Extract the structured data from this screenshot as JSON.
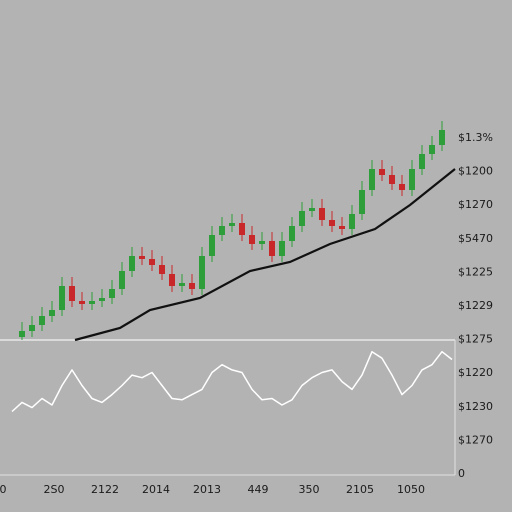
{
  "chart_data": {
    "type": "candlestick",
    "open": [
      1,
      3,
      5,
      8,
      10,
      18,
      13,
      12,
      13,
      14,
      17,
      23,
      28,
      27,
      25,
      22,
      18,
      19,
      17,
      28,
      35,
      38,
      39,
      35,
      32,
      33,
      28,
      33,
      38,
      43,
      44,
      40,
      38,
      37,
      42,
      50,
      57,
      55,
      52,
      50,
      57,
      62,
      65
    ],
    "high": [
      6,
      8,
      11,
      13,
      21,
      21,
      16,
      16,
      17,
      20,
      26,
      31,
      31,
      30,
      28,
      25,
      22,
      22,
      31,
      38,
      41,
      42,
      42,
      38,
      36,
      36,
      36,
      41,
      46,
      47,
      47,
      43,
      41,
      45,
      53,
      60,
      60,
      58,
      55,
      60,
      65,
      68,
      73
    ],
    "low": [
      0,
      1,
      3,
      6,
      8,
      11,
      10,
      10,
      11,
      12,
      15,
      21,
      25,
      23,
      20,
      16,
      16,
      15,
      15,
      26,
      33,
      36,
      33,
      30,
      30,
      26,
      26,
      31,
      36,
      41,
      38,
      36,
      35,
      35,
      40,
      48,
      53,
      50,
      48,
      48,
      55,
      60,
      63
    ],
    "close": [
      3,
      5,
      8,
      10,
      18,
      13,
      12,
      13,
      14,
      17,
      23,
      28,
      27,
      25,
      22,
      18,
      19,
      17,
      28,
      35,
      38,
      39,
      35,
      32,
      33,
      28,
      33,
      38,
      43,
      44,
      40,
      38,
      37,
      42,
      50,
      57,
      55,
      52,
      50,
      57,
      62,
      65,
      70
    ],
    "up_color": "#2e9e3a",
    "down_color": "#c8282a",
    "ylim": [
      0,
      110
    ],
    "average": {
      "color": "#111111",
      "x": [
        5.3,
        9.8,
        12.8,
        17.8,
        22.8,
        26.8,
        30.8,
        35.3,
        38.8,
        43.3
      ],
      "values": [
        0,
        4,
        10,
        14,
        23,
        26,
        32,
        37,
        45,
        57
      ]
    },
    "oscillator": {
      "color": "#ffffff",
      "ylim": [
        0,
        100
      ],
      "values": [
        45,
        52,
        48,
        55,
        50,
        65,
        77,
        65,
        55,
        52,
        58,
        65,
        73,
        71,
        75,
        65,
        55,
        54,
        58,
        62,
        75,
        81,
        77,
        75,
        62,
        54,
        55,
        50,
        54,
        65,
        71,
        75,
        77,
        68,
        62,
        73,
        91,
        86,
        73,
        58,
        65,
        77,
        81,
        91,
        85
      ]
    },
    "right_axis_labels": [
      "$1.3%",
      "$1200",
      "$1270",
      "$5470",
      "$1225",
      "$1229",
      "$1275",
      "$1220",
      "$1230",
      "$1270",
      "0"
    ],
    "bottom_axis_labels": [
      "0",
      "2S0",
      "2122",
      "2014",
      "2013",
      "449",
      "350",
      "2105",
      "1050"
    ]
  }
}
